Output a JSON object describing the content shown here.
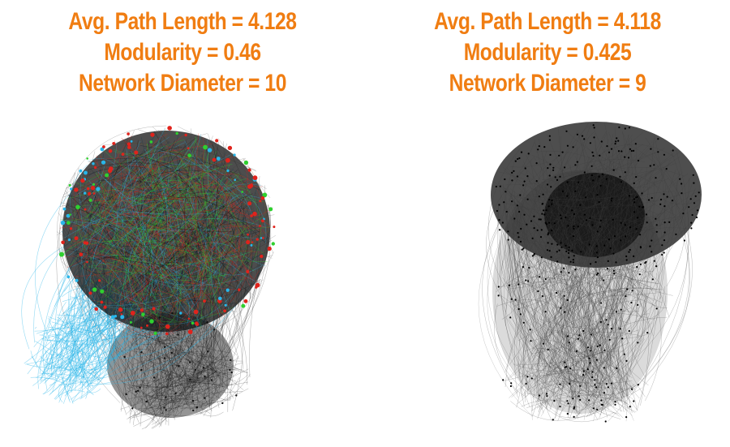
{
  "colors": {
    "title": "#f07d12",
    "edge_dark": "#111111",
    "edge_gray": "#3a3a3a",
    "accent_blue": "#28b6ea",
    "accent_red": "#e0231c",
    "accent_green": "#2fd02f",
    "accent_brown": "#7a5a1c"
  },
  "left_network": {
    "avg_path_length": "Avg. Path Length = 4.128",
    "modularity": "Modularity = 0.46",
    "network_diameter": "Network Diameter = 10",
    "style": "colored-communities"
  },
  "right_network": {
    "avg_path_length": "Avg. Path Length = 4.118",
    "modularity": "Modularity = 0.425",
    "network_diameter": "Network Diameter = 9",
    "style": "grayscale"
  }
}
